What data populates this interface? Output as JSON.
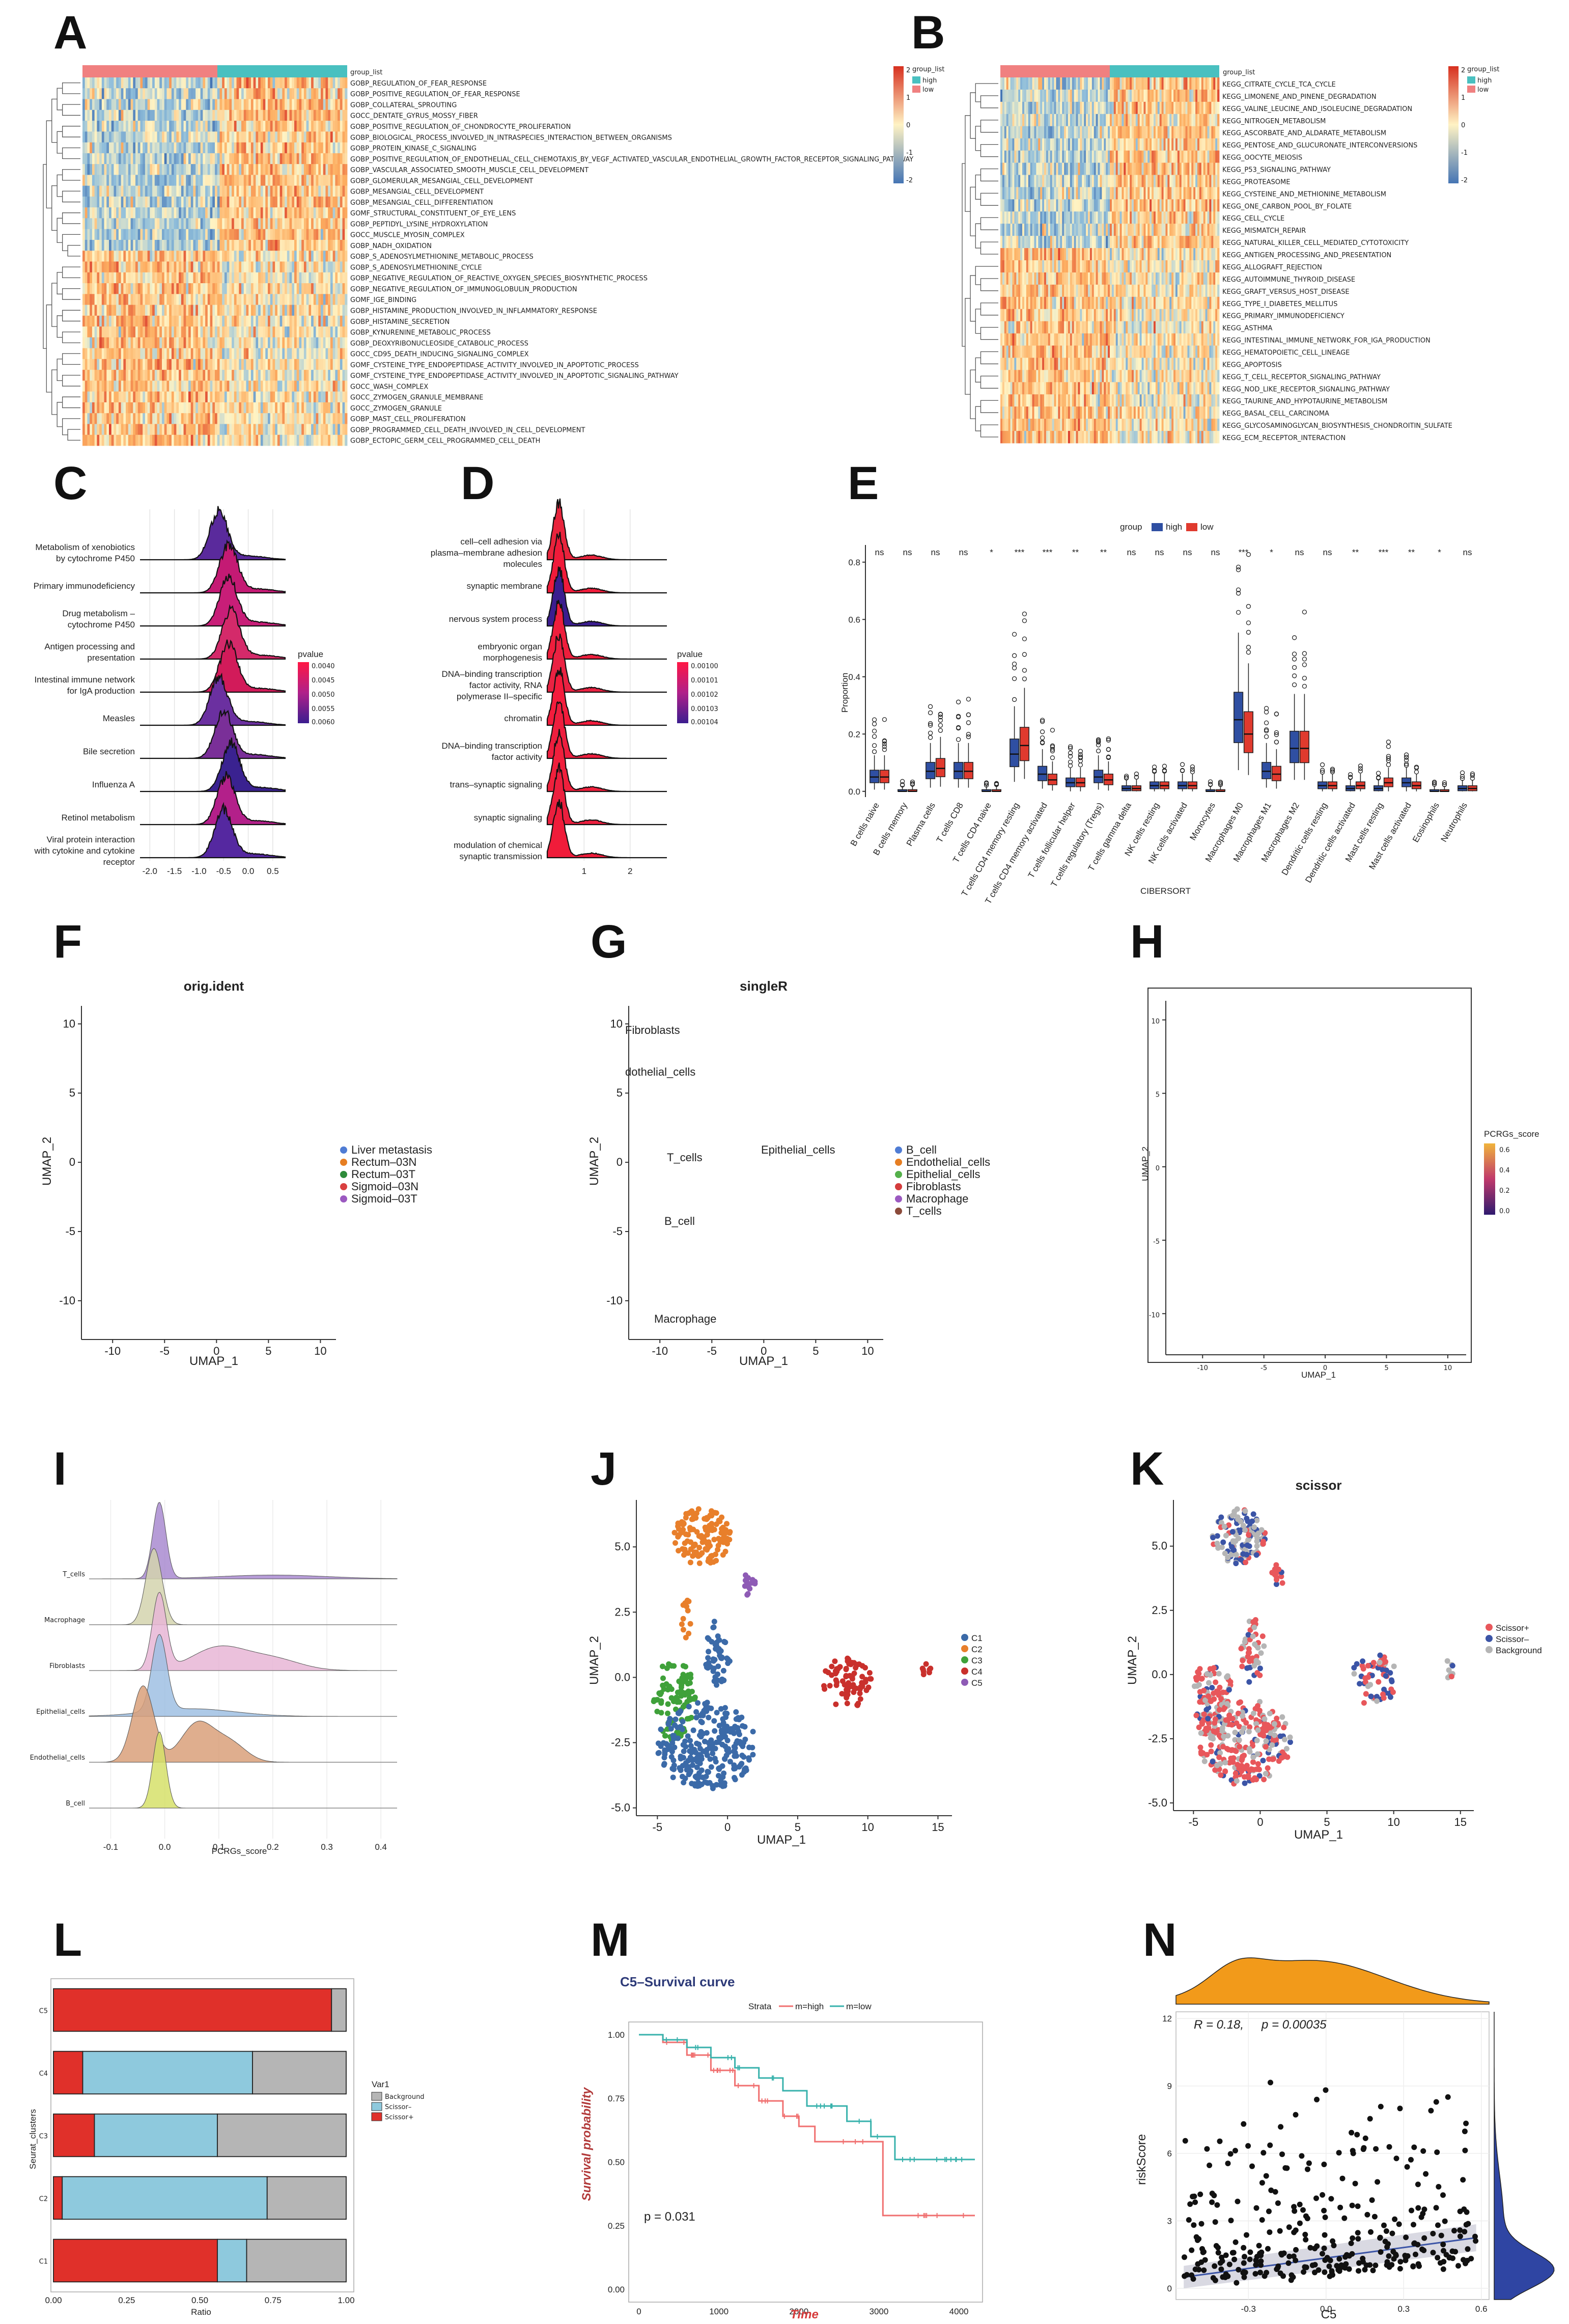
{
  "panels": [
    "A",
    "B",
    "C",
    "D",
    "E",
    "F",
    "G",
    "H",
    "I",
    "J",
    "K",
    "L",
    "M",
    "N"
  ],
  "colors": {
    "high": "#f08080",
    "low": "#49c0c0",
    "box_high": "#2f4fa2",
    "box_low": "#e03a2e",
    "scissor_pos": "#e8575b",
    "scissor_neg": "#3b54a6",
    "background": "#b5b5b5"
  },
  "panelA": {
    "legend_title": "group_list",
    "legend_items": [
      "high",
      "low"
    ],
    "ticks": [
      "2",
      "1",
      "0",
      "-1",
      "-2"
    ],
    "group_label": "group_list",
    "rows": [
      "GOBP_REGULATION_OF_FEAR_RESPONSE",
      "GOBP_POSITIVE_REGULATION_OF_FEAR_RESPONSE",
      "GOBP_COLLATERAL_SPROUTING",
      "GOCC_DENTATE_GYRUS_MOSSY_FIBER",
      "GOBP_POSITIVE_REGULATION_OF_CHONDROCYTE_PROLIFERATION",
      "GOBP_BIOLOGICAL_PROCESS_INVOLVED_IN_INTRASPECIES_INTERACTION_BETWEEN_ORGANISMS",
      "GOBP_PROTEIN_KINASE_C_SIGNALING",
      "GOBP_POSITIVE_REGULATION_OF_ENDOTHELIAL_CELL_CHEMOTAXIS_BY_VEGF_ACTIVATED_VASCULAR_ENDOTHELIAL_GROWTH_FACTOR_RECEPTOR_SIGNALING_PATHWAY",
      "GOBP_VASCULAR_ASSOCIATED_SMOOTH_MUSCLE_CELL_DEVELOPMENT",
      "GOBP_GLOMERULAR_MESANGIAL_CELL_DEVELOPMENT",
      "GOBP_MESANGIAL_CELL_DEVELOPMENT",
      "GOBP_MESANGIAL_CELL_DIFFERENTIATION",
      "GOMF_STRUCTURAL_CONSTITUENT_OF_EYE_LENS",
      "GOBP_PEPTIDYL_LYSINE_HYDROXYLATION",
      "GOCC_MUSCLE_MYOSIN_COMPLEX",
      "GOBP_NADH_OXIDATION",
      "GOBP_S_ADENOSYLMETHIONINE_METABOLIC_PROCESS",
      "GOBP_S_ADENOSYLMETHIONINE_CYCLE",
      "GOBP_NEGATIVE_REGULATION_OF_REACTIVE_OXYGEN_SPECIES_BIOSYNTHETIC_PROCESS",
      "GOBP_NEGATIVE_REGULATION_OF_IMMUNOGLOBULIN_PRODUCTION",
      "GOMF_IGE_BINDING",
      "GOBP_HISTAMINE_PRODUCTION_INVOLVED_IN_INFLAMMATORY_RESPONSE",
      "GOBP_HISTAMINE_SECRETION",
      "GOBP_KYNURENINE_METABOLIC_PROCESS",
      "GOBP_DEOXYRIBONUCLEOSIDE_CATABOLIC_PROCESS",
      "GOCC_CD95_DEATH_INDUCING_SIGNALING_COMPLEX",
      "GOMF_CYSTEINE_TYPE_ENDOPEPTIDASE_ACTIVITY_INVOLVED_IN_APOPTOTIC_PROCESS",
      "GOMF_CYSTEINE_TYPE_ENDOPEPTIDASE_ACTIVITY_INVOLVED_IN_APOPTOTIC_SIGNALING_PATHWAY",
      "GOCC_WASH_COMPLEX",
      "GOCC_ZYMOGEN_GRANULE_MEMBRANE",
      "GOCC_ZYMOGEN_GRANULE",
      "GOBP_MAST_CELL_PROLIFERATION",
      "GOBP_PROGRAMMED_CELL_DEATH_INVOLVED_IN_CELL_DEVELOPMENT",
      "GOBP_ECTOPIC_GERM_CELL_PROGRAMMED_CELL_DEATH"
    ]
  },
  "panelB": {
    "legend_title": "group_list",
    "legend_items": [
      "high",
      "low"
    ],
    "ticks": [
      "2",
      "1",
      "0",
      "-1",
      "-2"
    ],
    "group_label": "group_list",
    "rows": [
      "KEGG_CITRATE_CYCLE_TCA_CYCLE",
      "KEGG_LIMONENE_AND_PINENE_DEGRADATION",
      "KEGG_VALINE_LEUCINE_AND_ISOLEUCINE_DEGRADATION",
      "KEGG_NITROGEN_METABOLISM",
      "KEGG_ASCORBATE_AND_ALDARATE_METABOLISM",
      "KEGG_PENTOSE_AND_GLUCURONATE_INTERCONVERSIONS",
      "KEGG_OOCYTE_MEIOSIS",
      "KEGG_P53_SIGNALING_PATHWAY",
      "KEGG_PROTEASOME",
      "KEGG_CYSTEINE_AND_METHIONINE_METABOLISM",
      "KEGG_ONE_CARBON_POOL_BY_FOLATE",
      "KEGG_CELL_CYCLE",
      "KEGG_MISMATCH_REPAIR",
      "KEGG_NATURAL_KILLER_CELL_MEDIATED_CYTOTOXICITY",
      "KEGG_ANTIGEN_PROCESSING_AND_PRESENTATION",
      "KEGG_ALLOGRAFT_REJECTION",
      "KEGG_AUTOIMMUNE_THYROID_DISEASE",
      "KEGG_GRAFT_VERSUS_HOST_DISEASE",
      "KEGG_TYPE_I_DIABETES_MELLITUS",
      "KEGG_PRIMARY_IMMUNODEFICIENCY",
      "KEGG_ASTHMA",
      "KEGG_INTESTINAL_IMMUNE_NETWORK_FOR_IGA_PRODUCTION",
      "KEGG_HEMATOPOIETIC_CELL_LINEAGE",
      "KEGG_APOPTOSIS",
      "KEGG_T_CELL_RECEPTOR_SIGNALING_PATHWAY",
      "KEGG_NOD_LIKE_RECEPTOR_SIGNALING_PATHWAY",
      "KEGG_TAURINE_AND_HYPOTAURINE_METABOLISM",
      "KEGG_BASAL_CELL_CARCINOMA",
      "KEGG_GLYCOSAMINOGLYCAN_BIOSYNTHESIS_CHONDROITIN_SULFATE",
      "KEGG_ECM_RECEPTOR_INTERACTION"
    ]
  },
  "chart_data": [
    {
      "id": "C",
      "type": "ridgeline",
      "categories": [
        "Metabolism of xenobiotics by cytochrome P450",
        "Primary immunodeficiency",
        "Drug metabolism – cytochrome P450",
        "Antigen processing and presentation",
        "Intestinal immune network for IgA production",
        "Measles",
        "Bile secretion",
        "Influenza A",
        "Retinol metabolism",
        "Viral protein interaction with cytokine and cytokine receptor"
      ],
      "peaks": [
        -0.6,
        -0.4,
        -0.4,
        -0.35,
        -0.4,
        -0.6,
        -0.5,
        -0.35,
        -0.45,
        -0.5
      ],
      "xlim": [
        -2.2,
        0.75
      ],
      "xticks": [
        "-2.0",
        "-1.5",
        "-1.0",
        "-0.5",
        "0.0",
        "0.5"
      ],
      "legend_title": "pvalue",
      "legend_ticks": [
        "0.0040",
        "0.0045",
        "0.0050",
        "0.0055",
        "0.0060"
      ]
    },
    {
      "id": "D",
      "type": "ridgeline",
      "categories": [
        "cell–cell adhesion via plasma–membrane adhesion molecules",
        "synaptic membrane",
        "nervous system process",
        "embryonic organ morphogenesis",
        "DNA–binding transcription factor activity, RNA polymerase II–specific",
        "chromatin",
        "DNA–binding transcription factor activity",
        "trans–synaptic signaling",
        "synaptic signaling",
        "modulation of chemical synaptic transmission"
      ],
      "peaks": [
        0.45,
        0.45,
        0.45,
        0.45,
        0.45,
        0.45,
        0.45,
        0.45,
        0.45,
        0.45
      ],
      "xlim": [
        0.2,
        2.8
      ],
      "xticks": [
        "1",
        "2"
      ],
      "legend_title": "pvalue",
      "legend_ticks": [
        "0.00100",
        "0.00101",
        "0.00102",
        "0.00103",
        "0.00104"
      ]
    },
    {
      "id": "E",
      "type": "box",
      "legend_title": "group",
      "series": [
        "high",
        "low"
      ],
      "xlabel": "CIBERSORT",
      "ylabel": "Proportion",
      "ylim": [
        -0.02,
        0.86
      ],
      "yticks": [
        "0.0",
        "0.2",
        "0.4",
        "0.6",
        "0.8"
      ],
      "categories": [
        "B cells naive",
        "B cells memory",
        "Plasma cells",
        "T cells CD8",
        "T cells CD4 naive",
        "T cells CD4 memory resting",
        "T cells CD4 memory activated",
        "T cells follicular helper",
        "T cells regulatory (Tregs)",
        "T cells gamma delta",
        "NK cells resting",
        "NK cells activated",
        "Monocytes",
        "Macrophages M0",
        "Macrophages M1",
        "Macrophages M2",
        "Dendritic cells resting",
        "Dendritic cells activated",
        "Mast cells resting",
        "Mast cells activated",
        "Eosinophils",
        "Neutrophils"
      ],
      "significance": [
        "ns",
        "ns",
        "ns",
        "ns",
        "*",
        "***",
        "***",
        "**",
        "**",
        "ns",
        "ns",
        "ns",
        "ns",
        "***",
        "*",
        "ns",
        "ns",
        "**",
        "***",
        "**",
        "*",
        "ns"
      ],
      "medians_high": [
        0.05,
        0.0,
        0.07,
        0.07,
        0.0,
        0.13,
        0.06,
        0.03,
        0.05,
        0.01,
        0.02,
        0.02,
        0.0,
        0.25,
        0.07,
        0.15,
        0.02,
        0.01,
        0.01,
        0.03,
        0.0,
        0.01
      ],
      "medians_low": [
        0.05,
        0.0,
        0.08,
        0.07,
        0.0,
        0.16,
        0.04,
        0.03,
        0.04,
        0.01,
        0.02,
        0.02,
        0.0,
        0.2,
        0.06,
        0.15,
        0.02,
        0.02,
        0.03,
        0.02,
        0.0,
        0.01
      ]
    },
    {
      "id": "F",
      "type": "scatter",
      "title": "orig.ident",
      "xlabel": "UMAP_1",
      "ylabel": "UMAP_2",
      "xticks": [
        "-10",
        "-5",
        "0",
        "5",
        "10"
      ],
      "yticks": [
        "10",
        "5",
        "0",
        "-5",
        "-10"
      ],
      "series": [
        "Liver metastasis",
        "Rectum–03N",
        "Rectum–03T",
        "Sigmoid–03N",
        "Sigmoid–03T"
      ],
      "series_colors": [
        "#4f7cd4",
        "#e67e22",
        "#2e8b3a",
        "#d94040",
        "#9b59c0"
      ]
    },
    {
      "id": "G",
      "type": "scatter",
      "title": "singleR",
      "xlabel": "UMAP_1",
      "ylabel": "UMAP_2",
      "xticks": [
        "-10",
        "-5",
        "0",
        "5",
        "10"
      ],
      "yticks": [
        "10",
        "5",
        "0",
        "-5",
        "-10"
      ],
      "series": [
        "B_cell",
        "Endothelial_cells",
        "Epithelial_cells",
        "Fibroblasts",
        "Macrophage",
        "T_cells"
      ],
      "series_colors": [
        "#4f7cd4",
        "#e67e22",
        "#54b04a",
        "#d43c3c",
        "#9b59c0",
        "#8b4a3a"
      ],
      "annotations": [
        "Fibroblasts",
        "dothelial_cells",
        "Epithelial_cells",
        "T_cells",
        "B_cell",
        "Macrophage"
      ]
    },
    {
      "id": "H",
      "type": "scatter",
      "xlabel": "UMAP_1",
      "ylabel": "UMAP_2",
      "xticks": [
        "-10",
        "-5",
        "0",
        "5",
        "10"
      ],
      "yticks": [
        "10",
        "5",
        "0",
        "-5",
        "-10"
      ],
      "legend_title": "PCRGs_score",
      "legend_ticks": [
        "0.6",
        "0.4",
        "0.2",
        "0.0"
      ]
    },
    {
      "id": "I",
      "type": "ridgeline",
      "xlabel": "PCRGs_score",
      "categories": [
        "T_cells",
        "Macrophage",
        "Fibroblasts",
        "Epithelial_cells",
        "Endothelial_cells",
        "B_cell"
      ],
      "fills": [
        "#a98bd0",
        "#d4d4ae",
        "#e8b6d6",
        "#9fbfe3",
        "#d9a07a",
        "#d6e06a"
      ],
      "peaks": [
        -0.01,
        -0.02,
        -0.01,
        -0.01,
        -0.04,
        -0.01
      ],
      "xticks": [
        "-0.1",
        "0.0",
        "0.1",
        "0.2",
        "0.3",
        "0.4"
      ]
    },
    {
      "id": "J",
      "type": "scatter",
      "xlabel": "UMAP_1",
      "ylabel": "UMAP_2",
      "xticks": [
        "-5",
        "0",
        "5",
        "10",
        "15"
      ],
      "yticks": [
        "5.0",
        "2.5",
        "0.0",
        "-2.5",
        "-5.0"
      ],
      "series": [
        "C1",
        "C2",
        "C3",
        "C4",
        "C5"
      ],
      "series_colors": [
        "#3b6aa8",
        "#e87f2b",
        "#3fa13a",
        "#c9302c",
        "#8e5bb5"
      ]
    },
    {
      "id": "K",
      "type": "scatter",
      "title": "scissor",
      "xlabel": "UMAP_1",
      "ylabel": "UMAP_2",
      "xticks": [
        "-5",
        "0",
        "5",
        "10",
        "15"
      ],
      "yticks": [
        "5.0",
        "2.5",
        "0.0",
        "-2.5",
        "-5.0"
      ],
      "series": [
        "Scissor+",
        "Scissor–",
        "Background"
      ],
      "series_colors": [
        "#e8575b",
        "#3b54a6",
        "#b5b5b5"
      ]
    },
    {
      "id": "L",
      "type": "stacked-bar-horizontal",
      "xlabel": "Ratio",
      "ylabel": "Seurat_clusters",
      "legend_title": "Var1",
      "series_names": [
        "Background",
        "Scissor–",
        "Scissor+"
      ],
      "categories": [
        "C5",
        "C4",
        "C3",
        "C2",
        "C1"
      ],
      "scissor_pos": [
        0.95,
        0.1,
        0.14,
        0.03,
        0.56
      ],
      "scissor_neg": [
        0.0,
        0.58,
        0.42,
        0.7,
        0.1
      ],
      "background": [
        0.05,
        0.32,
        0.44,
        0.27,
        0.34
      ],
      "xticks": [
        "0.00",
        "0.25",
        "0.50",
        "0.75",
        "1.00"
      ]
    },
    {
      "id": "M",
      "type": "line",
      "title": "C5–Survival curve",
      "xlabel": "Time",
      "ylabel": "Survival probability",
      "legend_title": "Strata",
      "series_names": [
        "m=high",
        "m=low"
      ],
      "pvalue": "p = 0.031",
      "xticks": [
        "0",
        "1000",
        "2000",
        "3000",
        "4000"
      ],
      "yticks": [
        "1.00",
        "0.75",
        "0.50",
        "0.25",
        "0.00"
      ],
      "high_steps": [
        [
          0,
          1.0
        ],
        [
          300,
          0.97
        ],
        [
          600,
          0.92
        ],
        [
          900,
          0.86
        ],
        [
          1200,
          0.8
        ],
        [
          1500,
          0.74
        ],
        [
          1800,
          0.68
        ],
        [
          2000,
          0.64
        ],
        [
          2200,
          0.58
        ],
        [
          3000,
          0.58
        ],
        [
          3050,
          0.29
        ],
        [
          4200,
          0.29
        ]
      ],
      "low_steps": [
        [
          0,
          1.0
        ],
        [
          300,
          0.98
        ],
        [
          600,
          0.95
        ],
        [
          900,
          0.91
        ],
        [
          1200,
          0.87
        ],
        [
          1500,
          0.83
        ],
        [
          1800,
          0.78
        ],
        [
          2100,
          0.72
        ],
        [
          2600,
          0.66
        ],
        [
          2900,
          0.6
        ],
        [
          3200,
          0.51
        ],
        [
          4200,
          0.51
        ]
      ]
    },
    {
      "id": "N",
      "type": "scatter",
      "xlabel": "C5",
      "ylabel": "riskScore",
      "stat_r": "R = 0.18,",
      "stat_p": "p = 0.00035",
      "xticks": [
        "-0.3",
        "0.0",
        "0.3",
        "0.6"
      ],
      "yticks": [
        "12",
        "9",
        "6",
        "3",
        "0"
      ],
      "fit": {
        "intercept": 1.35,
        "slope": 1.55
      }
    }
  ]
}
